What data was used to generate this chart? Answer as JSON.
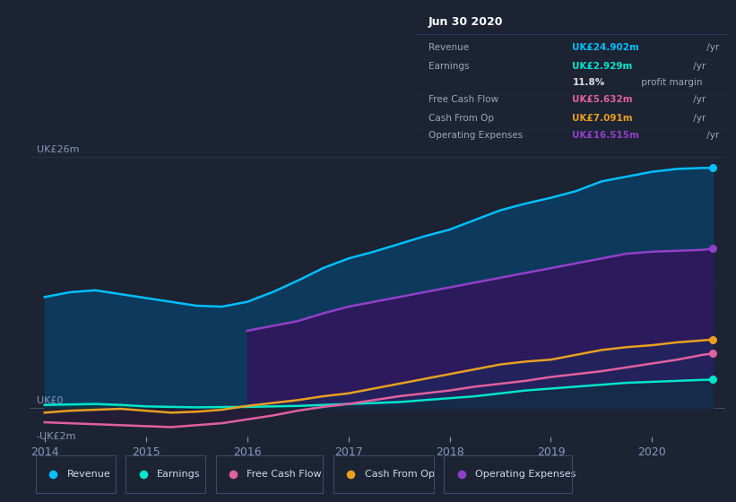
{
  "bg_color": "#1c2333",
  "plot_bg_color": "#1c2333",
  "chart_inner_bg": "#1e2d42",
  "x_years": [
    2014.0,
    2014.25,
    2014.5,
    2014.75,
    2015.0,
    2015.25,
    2015.5,
    2015.75,
    2016.0,
    2016.25,
    2016.5,
    2016.75,
    2017.0,
    2017.25,
    2017.5,
    2017.75,
    2018.0,
    2018.25,
    2018.5,
    2018.75,
    2019.0,
    2019.25,
    2019.5,
    2019.75,
    2020.0,
    2020.25,
    2020.5,
    2020.6
  ],
  "revenue": [
    11.5,
    12.0,
    12.2,
    11.8,
    11.4,
    11.0,
    10.6,
    10.5,
    11.0,
    12.0,
    13.2,
    14.5,
    15.5,
    16.2,
    17.0,
    17.8,
    18.5,
    19.5,
    20.5,
    21.2,
    21.8,
    22.5,
    23.5,
    24.0,
    24.5,
    24.8,
    24.9,
    24.902
  ],
  "earnings": [
    0.3,
    0.35,
    0.4,
    0.3,
    0.15,
    0.1,
    0.05,
    0.08,
    0.1,
    0.15,
    0.2,
    0.3,
    0.4,
    0.5,
    0.6,
    0.8,
    1.0,
    1.2,
    1.5,
    1.8,
    2.0,
    2.2,
    2.4,
    2.6,
    2.7,
    2.8,
    2.9,
    2.929
  ],
  "free_cash_flow": [
    -1.5,
    -1.6,
    -1.7,
    -1.8,
    -1.9,
    -2.0,
    -1.8,
    -1.6,
    -1.2,
    -0.8,
    -0.3,
    0.1,
    0.4,
    0.8,
    1.2,
    1.5,
    1.8,
    2.2,
    2.5,
    2.8,
    3.2,
    3.5,
    3.8,
    4.2,
    4.6,
    5.0,
    5.5,
    5.632
  ],
  "cash_from_op": [
    -0.5,
    -0.3,
    -0.2,
    -0.1,
    -0.3,
    -0.5,
    -0.4,
    -0.2,
    0.2,
    0.5,
    0.8,
    1.2,
    1.5,
    2.0,
    2.5,
    3.0,
    3.5,
    4.0,
    4.5,
    4.8,
    5.0,
    5.5,
    6.0,
    6.3,
    6.5,
    6.8,
    7.0,
    7.091
  ],
  "op_exp_x": [
    2016.0,
    2016.25,
    2016.5,
    2016.75,
    2017.0,
    2017.25,
    2017.5,
    2017.75,
    2018.0,
    2018.25,
    2018.5,
    2018.75,
    2019.0,
    2019.25,
    2019.5,
    2019.75,
    2020.0,
    2020.25,
    2020.5,
    2020.6
  ],
  "op_exp_y": [
    8.0,
    8.5,
    9.0,
    9.8,
    10.5,
    11.0,
    11.5,
    12.0,
    12.5,
    13.0,
    13.5,
    14.0,
    14.5,
    15.0,
    15.5,
    16.0,
    16.2,
    16.3,
    16.4,
    16.515
  ],
  "revenue_color": "#00bfff",
  "earnings_color": "#00e5cc",
  "free_cash_flow_color": "#e060a0",
  "cash_from_op_color": "#e8a020",
  "operating_expenses_color": "#9040c8",
  "ylim": [
    -3.0,
    28.0
  ],
  "xlim": [
    2013.85,
    2020.72
  ],
  "x_ticks": [
    2014,
    2015,
    2016,
    2017,
    2018,
    2019,
    2020
  ],
  "legend_items": [
    {
      "label": "Revenue",
      "color": "#00bfff"
    },
    {
      "label": "Earnings",
      "color": "#00e5cc"
    },
    {
      "label": "Free Cash Flow",
      "color": "#e060a0"
    },
    {
      "label": "Cash From Op",
      "color": "#e8a020"
    },
    {
      "label": "Operating Expenses",
      "color": "#9040c8"
    }
  ],
  "info_box": {
    "date": "Jun 30 2020",
    "rows": [
      {
        "label": "Revenue",
        "value": "UK£24.902m",
        "unit": " /yr",
        "color": "#00bfff"
      },
      {
        "label": "Earnings",
        "value": "UK£2.929m",
        "unit": " /yr",
        "color": "#00e5cc"
      },
      {
        "label": "",
        "value": "11.8%",
        "unit": " profit margin",
        "color": "#dddddd"
      },
      {
        "label": "Free Cash Flow",
        "value": "UK£5.632m",
        "unit": " /yr",
        "color": "#e060a0"
      },
      {
        "label": "Cash From Op",
        "value": "UK£7.091m",
        "unit": " /yr",
        "color": "#e8a020"
      },
      {
        "label": "Operating Expenses",
        "value": "UK£16.515m",
        "unit": " /yr",
        "color": "#9040c8"
      }
    ]
  }
}
